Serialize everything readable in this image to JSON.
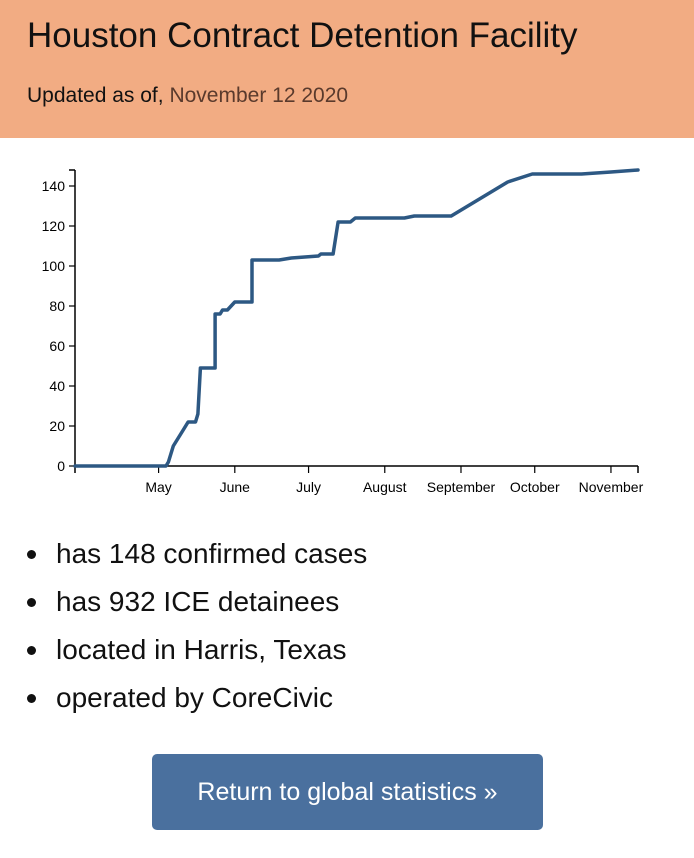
{
  "colors": {
    "header_bg": "#f2ac83",
    "date_text": "#5a3a2c",
    "line": "#2d5883",
    "button_bg": "#4a709e"
  },
  "header": {
    "title": "Houston Contract Detention Facility",
    "updated_label": "Updated as of,",
    "updated_date": "November 12 2020"
  },
  "chart_data": {
    "type": "line",
    "title": "",
    "xlabel": "",
    "ylabel": "",
    "x_domain": [
      "2020-03-28",
      "2020-11-12"
    ],
    "ylim": [
      0,
      148
    ],
    "yticks": [
      0,
      20,
      40,
      60,
      80,
      100,
      120,
      140
    ],
    "xticks": [
      {
        "label": "May",
        "date": "2020-05-01"
      },
      {
        "label": "June",
        "date": "2020-06-01"
      },
      {
        "label": "July",
        "date": "2020-07-01"
      },
      {
        "label": "August",
        "date": "2020-08-01"
      },
      {
        "label": "September",
        "date": "2020-09-01"
      },
      {
        "label": "October",
        "date": "2020-10-01"
      },
      {
        "label": "November",
        "date": "2020-11-01"
      }
    ],
    "grid": false,
    "legend": "none",
    "series": [
      {
        "values": [
          [
            "2020-03-28",
            0
          ],
          [
            "2020-05-04",
            0
          ],
          [
            "2020-05-05",
            2
          ],
          [
            "2020-05-07",
            10
          ],
          [
            "2020-05-11",
            18
          ],
          [
            "2020-05-13",
            22
          ],
          [
            "2020-05-16",
            22
          ],
          [
            "2020-05-17",
            26
          ],
          [
            "2020-05-18",
            49
          ],
          [
            "2020-05-24",
            49
          ],
          [
            "2020-05-24",
            76
          ],
          [
            "2020-05-26",
            76
          ],
          [
            "2020-05-27",
            78
          ],
          [
            "2020-05-29",
            78
          ],
          [
            "2020-06-01",
            82
          ],
          [
            "2020-06-08",
            82
          ],
          [
            "2020-06-08",
            103
          ],
          [
            "2020-06-19",
            103
          ],
          [
            "2020-06-24",
            104
          ],
          [
            "2020-07-05",
            105
          ],
          [
            "2020-07-06",
            106
          ],
          [
            "2020-07-11",
            106
          ],
          [
            "2020-07-13",
            122
          ],
          [
            "2020-07-18",
            122
          ],
          [
            "2020-07-20",
            124
          ],
          [
            "2020-08-09",
            124
          ],
          [
            "2020-08-13",
            125
          ],
          [
            "2020-08-28",
            125
          ],
          [
            "2020-09-20",
            142
          ],
          [
            "2020-09-30",
            146
          ],
          [
            "2020-10-20",
            146
          ],
          [
            "2020-11-01",
            147
          ],
          [
            "2020-11-12",
            148
          ]
        ]
      }
    ]
  },
  "facts": [
    "has 148 confirmed cases",
    "has 932 ICE detainees",
    "located in Harris, Texas",
    "operated by CoreCivic"
  ],
  "button": {
    "label": "Return to global statistics »"
  }
}
